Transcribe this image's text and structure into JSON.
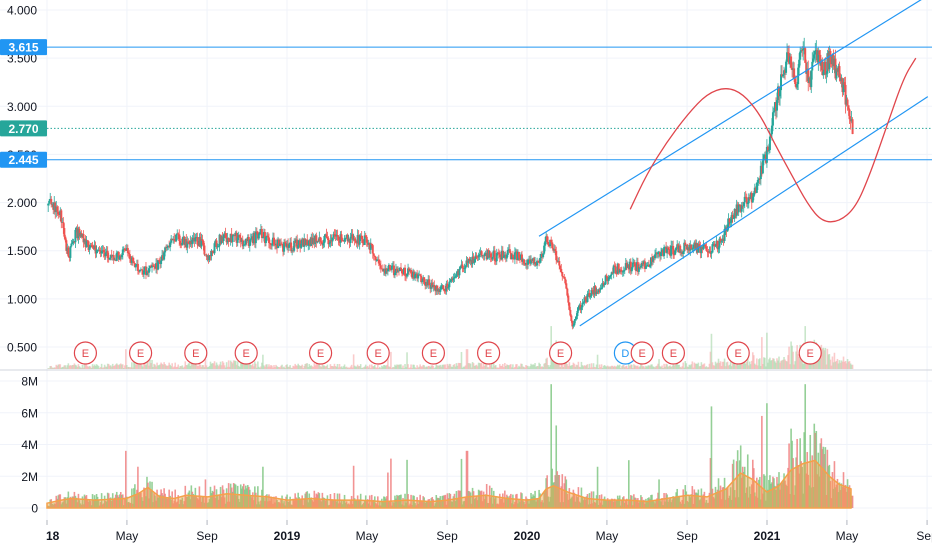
{
  "chart_data": {
    "type": "candlestick",
    "price_axis": {
      "ticks": [
        {
          "label": "4.000",
          "value": 4.0
        },
        {
          "label": "3.500",
          "value": 3.5
        },
        {
          "label": "3.000",
          "value": 3.0
        },
        {
          "label": "2.500",
          "value": 2.5
        },
        {
          "label": "2.000",
          "value": 2.0
        },
        {
          "label": "1.500",
          "value": 1.5
        },
        {
          "label": "1.000",
          "value": 1.0
        },
        {
          "label": "0.500",
          "value": 0.5
        }
      ],
      "range": [
        0.3,
        4.1
      ]
    },
    "volume_axis": {
      "ticks": [
        {
          "label": "8M",
          "value": 8
        },
        {
          "label": "6M",
          "value": 6
        },
        {
          "label": "4M",
          "value": 4
        },
        {
          "label": "2M",
          "value": 2
        },
        {
          "label": "0",
          "value": 0
        }
      ],
      "range": [
        0,
        8.3
      ]
    },
    "time_axis": {
      "ticks": [
        {
          "label": "18",
          "t": 0.0,
          "bold": true
        },
        {
          "label": "May",
          "t": 0.333
        },
        {
          "label": "Sep",
          "t": 0.667
        },
        {
          "label": "2019",
          "t": 1.0,
          "bold": true
        },
        {
          "label": "May",
          "t": 1.333
        },
        {
          "label": "Sep",
          "t": 1.667
        },
        {
          "label": "2020",
          "t": 2.0,
          "bold": true
        },
        {
          "label": "May",
          "t": 2.333
        },
        {
          "label": "Sep",
          "t": 2.667
        },
        {
          "label": "2021",
          "t": 3.0,
          "bold": true
        },
        {
          "label": "May",
          "t": 3.333
        },
        {
          "label": "Sep",
          "t": 3.667
        }
      ]
    },
    "price_path": [
      [
        0.0,
        1.97
      ],
      [
        0.03,
        1.98
      ],
      [
        0.06,
        1.86
      ],
      [
        0.08,
        1.55
      ],
      [
        0.09,
        1.42
      ],
      [
        0.12,
        1.7
      ],
      [
        0.16,
        1.58
      ],
      [
        0.22,
        1.5
      ],
      [
        0.28,
        1.42
      ],
      [
        0.33,
        1.5
      ],
      [
        0.38,
        1.3
      ],
      [
        0.42,
        1.28
      ],
      [
        0.47,
        1.38
      ],
      [
        0.53,
        1.65
      ],
      [
        0.58,
        1.58
      ],
      [
        0.64,
        1.6
      ],
      [
        0.67,
        1.43
      ],
      [
        0.72,
        1.62
      ],
      [
        0.78,
        1.65
      ],
      [
        0.83,
        1.58
      ],
      [
        0.89,
        1.67
      ],
      [
        0.94,
        1.58
      ],
      [
        1.0,
        1.53
      ],
      [
        1.06,
        1.58
      ],
      [
        1.11,
        1.6
      ],
      [
        1.17,
        1.62
      ],
      [
        1.22,
        1.64
      ],
      [
        1.28,
        1.62
      ],
      [
        1.33,
        1.6
      ],
      [
        1.36,
        1.48
      ],
      [
        1.39,
        1.32
      ],
      [
        1.44,
        1.3
      ],
      [
        1.5,
        1.28
      ],
      [
        1.56,
        1.2
      ],
      [
        1.61,
        1.12
      ],
      [
        1.67,
        1.12
      ],
      [
        1.72,
        1.3
      ],
      [
        1.78,
        1.42
      ],
      [
        1.83,
        1.46
      ],
      [
        1.89,
        1.44
      ],
      [
        1.94,
        1.47
      ],
      [
        2.0,
        1.4
      ],
      [
        2.05,
        1.38
      ],
      [
        2.08,
        1.6
      ],
      [
        2.11,
        1.52
      ],
      [
        2.14,
        1.35
      ],
      [
        2.17,
        1.02
      ],
      [
        2.19,
        0.72
      ],
      [
        2.22,
        0.92
      ],
      [
        2.25,
        1.02
      ],
      [
        2.31,
        1.15
      ],
      [
        2.36,
        1.3
      ],
      [
        2.42,
        1.34
      ],
      [
        2.47,
        1.33
      ],
      [
        2.53,
        1.42
      ],
      [
        2.58,
        1.5
      ],
      [
        2.64,
        1.52
      ],
      [
        2.69,
        1.55
      ],
      [
        2.75,
        1.5
      ],
      [
        2.81,
        1.58
      ],
      [
        2.83,
        1.75
      ],
      [
        2.86,
        1.9
      ],
      [
        2.9,
        1.98
      ],
      [
        2.94,
        2.05
      ],
      [
        2.97,
        2.3
      ],
      [
        3.0,
        2.5
      ],
      [
        3.03,
        2.95
      ],
      [
        3.06,
        3.3
      ],
      [
        3.09,
        3.5
      ],
      [
        3.12,
        3.25
      ],
      [
        3.15,
        3.6
      ],
      [
        3.18,
        3.2
      ],
      [
        3.2,
        3.6
      ],
      [
        3.23,
        3.35
      ],
      [
        3.26,
        3.5
      ],
      [
        3.28,
        3.4
      ],
      [
        3.31,
        3.3
      ],
      [
        3.33,
        3.05
      ],
      [
        3.35,
        2.85
      ],
      [
        3.36,
        2.6
      ]
    ],
    "volume_path": [
      [
        0.0,
        0.3
      ],
      [
        0.06,
        0.5
      ],
      [
        0.1,
        0.6
      ],
      [
        0.2,
        0.5
      ],
      [
        0.33,
        0.6
      ],
      [
        0.38,
        0.9
      ],
      [
        0.42,
        1.3
      ],
      [
        0.47,
        0.7
      ],
      [
        0.53,
        0.6
      ],
      [
        0.58,
        0.8
      ],
      [
        0.67,
        0.7
      ],
      [
        0.75,
        0.9
      ],
      [
        0.83,
        0.8
      ],
      [
        0.92,
        0.7
      ],
      [
        1.0,
        0.5
      ],
      [
        1.1,
        0.6
      ],
      [
        1.2,
        0.5
      ],
      [
        1.3,
        0.5
      ],
      [
        1.4,
        0.4
      ],
      [
        1.5,
        0.5
      ],
      [
        1.6,
        0.4
      ],
      [
        1.67,
        0.5
      ],
      [
        1.75,
        0.7
      ],
      [
        1.83,
        0.8
      ],
      [
        1.92,
        0.6
      ],
      [
        2.0,
        0.5
      ],
      [
        2.05,
        0.6
      ],
      [
        2.08,
        1.2
      ],
      [
        2.11,
        1.4
      ],
      [
        2.17,
        1.0
      ],
      [
        2.25,
        0.6
      ],
      [
        2.33,
        0.5
      ],
      [
        2.42,
        0.5
      ],
      [
        2.5,
        0.4
      ],
      [
        2.58,
        0.6
      ],
      [
        2.67,
        0.8
      ],
      [
        2.75,
        0.7
      ],
      [
        2.83,
        1.2
      ],
      [
        2.89,
        2.2
      ],
      [
        2.94,
        1.8
      ],
      [
        3.0,
        1.0
      ],
      [
        3.05,
        1.4
      ],
      [
        3.1,
        2.4
      ],
      [
        3.15,
        2.8
      ],
      [
        3.2,
        3.0
      ],
      [
        3.26,
        2.0
      ],
      [
        3.3,
        1.5
      ],
      [
        3.35,
        1.2
      ]
    ],
    "horizontal_levels": [
      {
        "label": "3.615",
        "value": 3.615,
        "style": "solid",
        "color": "#2196f3"
      },
      {
        "label": "2.770",
        "value": 2.77,
        "style": "dotted",
        "color": "#26a69a"
      },
      {
        "label": "2.445",
        "value": 2.445,
        "style": "solid",
        "color": "#2196f3"
      }
    ],
    "channel_lines": [
      {
        "from": [
          2.05,
          1.65
        ],
        "to": [
          3.67,
          4.15
        ],
        "color": "#2196f3"
      },
      {
        "from": [
          2.22,
          0.72
        ],
        "to": [
          3.67,
          3.1
        ],
        "color": "#2196f3"
      }
    ],
    "sine_curve": {
      "points": [
        [
          2.43,
          1.93
        ],
        [
          2.5,
          2.3
        ],
        [
          2.58,
          2.62
        ],
        [
          2.67,
          2.92
        ],
        [
          2.75,
          3.13
        ],
        [
          2.83,
          3.2
        ],
        [
          2.9,
          3.13
        ],
        [
          2.97,
          2.92
        ],
        [
          3.03,
          2.62
        ],
        [
          3.1,
          2.3
        ],
        [
          3.17,
          1.98
        ],
        [
          3.23,
          1.8
        ],
        [
          3.3,
          1.8
        ],
        [
          3.37,
          1.95
        ],
        [
          3.43,
          2.3
        ],
        [
          3.5,
          2.8
        ],
        [
          3.57,
          3.3
        ],
        [
          3.62,
          3.5
        ]
      ],
      "color": "#e0464c"
    },
    "event_markers": [
      {
        "label": "E",
        "t": 0.16
      },
      {
        "label": "E",
        "t": 0.39
      },
      {
        "label": "E",
        "t": 0.62
      },
      {
        "label": "E",
        "t": 0.83
      },
      {
        "label": "E",
        "t": 1.14
      },
      {
        "label": "E",
        "t": 1.38
      },
      {
        "label": "E",
        "t": 1.61
      },
      {
        "label": "E",
        "t": 1.84
      },
      {
        "label": "E",
        "t": 2.14
      },
      {
        "label": "D",
        "t": 2.41
      },
      {
        "label": "E",
        "t": 2.48
      },
      {
        "label": "E",
        "t": 2.61
      },
      {
        "label": "E",
        "t": 2.88
      },
      {
        "label": "E",
        "t": 3.18
      }
    ],
    "colors": {
      "up": "#26a69a",
      "down": "#ef5350",
      "volume_area": "#f4a14a",
      "level_line": "#2196f3",
      "current_price": "#26a69a"
    }
  }
}
